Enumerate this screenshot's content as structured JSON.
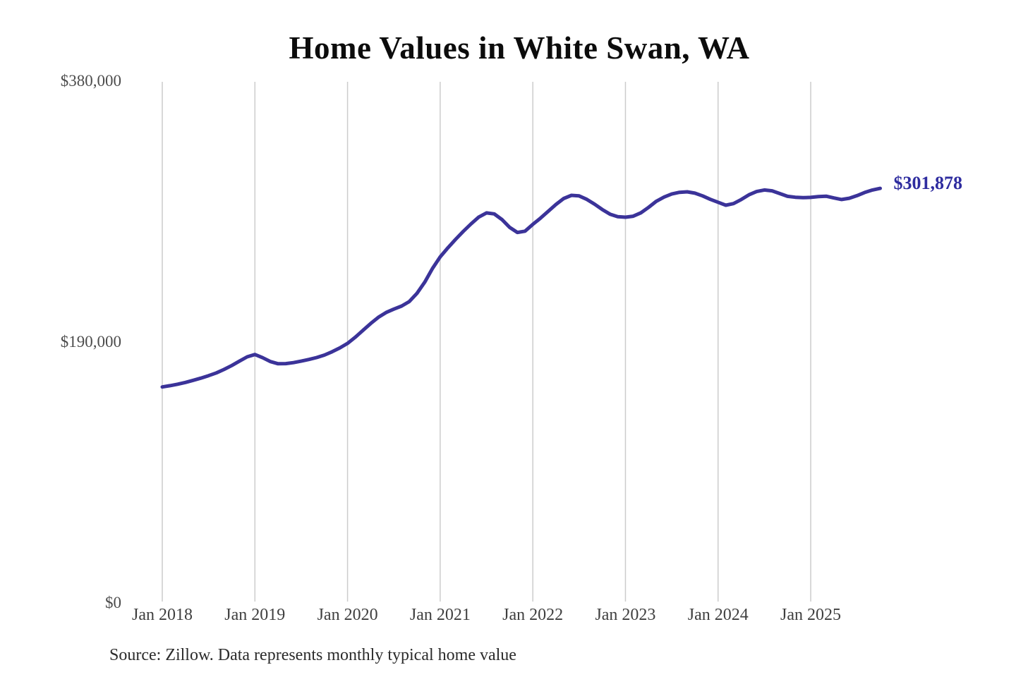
{
  "chart": {
    "title": "Home Values in White Swan, WA",
    "end_label": "$301,878",
    "source": "Source: Zillow. Data represents monthly typical home value",
    "line_color": "#3b3399",
    "end_label_color": "#2e2c9f",
    "grid_color": "#cccccc"
  },
  "chart_data": {
    "type": "line",
    "title": "Home Values in White Swan, WA",
    "x_start": "2018-01",
    "x_end": "2025-10",
    "x_interval": "monthly",
    "ylim": [
      0,
      380000
    ],
    "grid": "vertical-only",
    "legend": "none",
    "yticks": [
      {
        "label": "$380,000",
        "value": 380000
      },
      {
        "label": "$190,000",
        "value": 190000
      },
      {
        "label": "$0",
        "value": 0
      }
    ],
    "xticks": [
      {
        "label": "Jan 2018",
        "month_index": 0
      },
      {
        "label": "Jan 2019",
        "month_index": 12
      },
      {
        "label": "Jan 2020",
        "month_index": 24
      },
      {
        "label": "Jan 2021",
        "month_index": 36
      },
      {
        "label": "Jan 2022",
        "month_index": 48
      },
      {
        "label": "Jan 2023",
        "month_index": 60
      },
      {
        "label": "Jan 2024",
        "month_index": 72
      },
      {
        "label": "Jan 2025",
        "month_index": 84
      }
    ],
    "series": [
      {
        "name": "Typical home value",
        "values": [
          157300,
          158200,
          159300,
          160600,
          162100,
          163700,
          165500,
          167500,
          170000,
          172900,
          176100,
          179200,
          180900,
          178600,
          175800,
          174200,
          174300,
          175000,
          176100,
          177300,
          178700,
          180500,
          182900,
          185700,
          189000,
          193500,
          198500,
          203500,
          208000,
          211500,
          214000,
          216200,
          219500,
          225500,
          233600,
          243500,
          252000,
          258600,
          264800,
          270600,
          276000,
          281000,
          284000,
          283300,
          279200,
          273500,
          269800,
          270700,
          275700,
          280200,
          285200,
          290200,
          294500,
          296800,
          296400,
          293900,
          290400,
          286500,
          283100,
          281300,
          280900,
          281600,
          284100,
          288100,
          292500,
          295600,
          297800,
          299000,
          299400,
          298400,
          296400,
          293900,
          291800,
          289600,
          290800,
          293800,
          297200,
          299600,
          300700,
          300100,
          298100,
          296100,
          295400,
          295100,
          295300,
          295900,
          296200,
          294900,
          293800,
          294700,
          296600,
          298900,
          300700,
          301878
        ]
      }
    ],
    "last_value": 301878
  }
}
